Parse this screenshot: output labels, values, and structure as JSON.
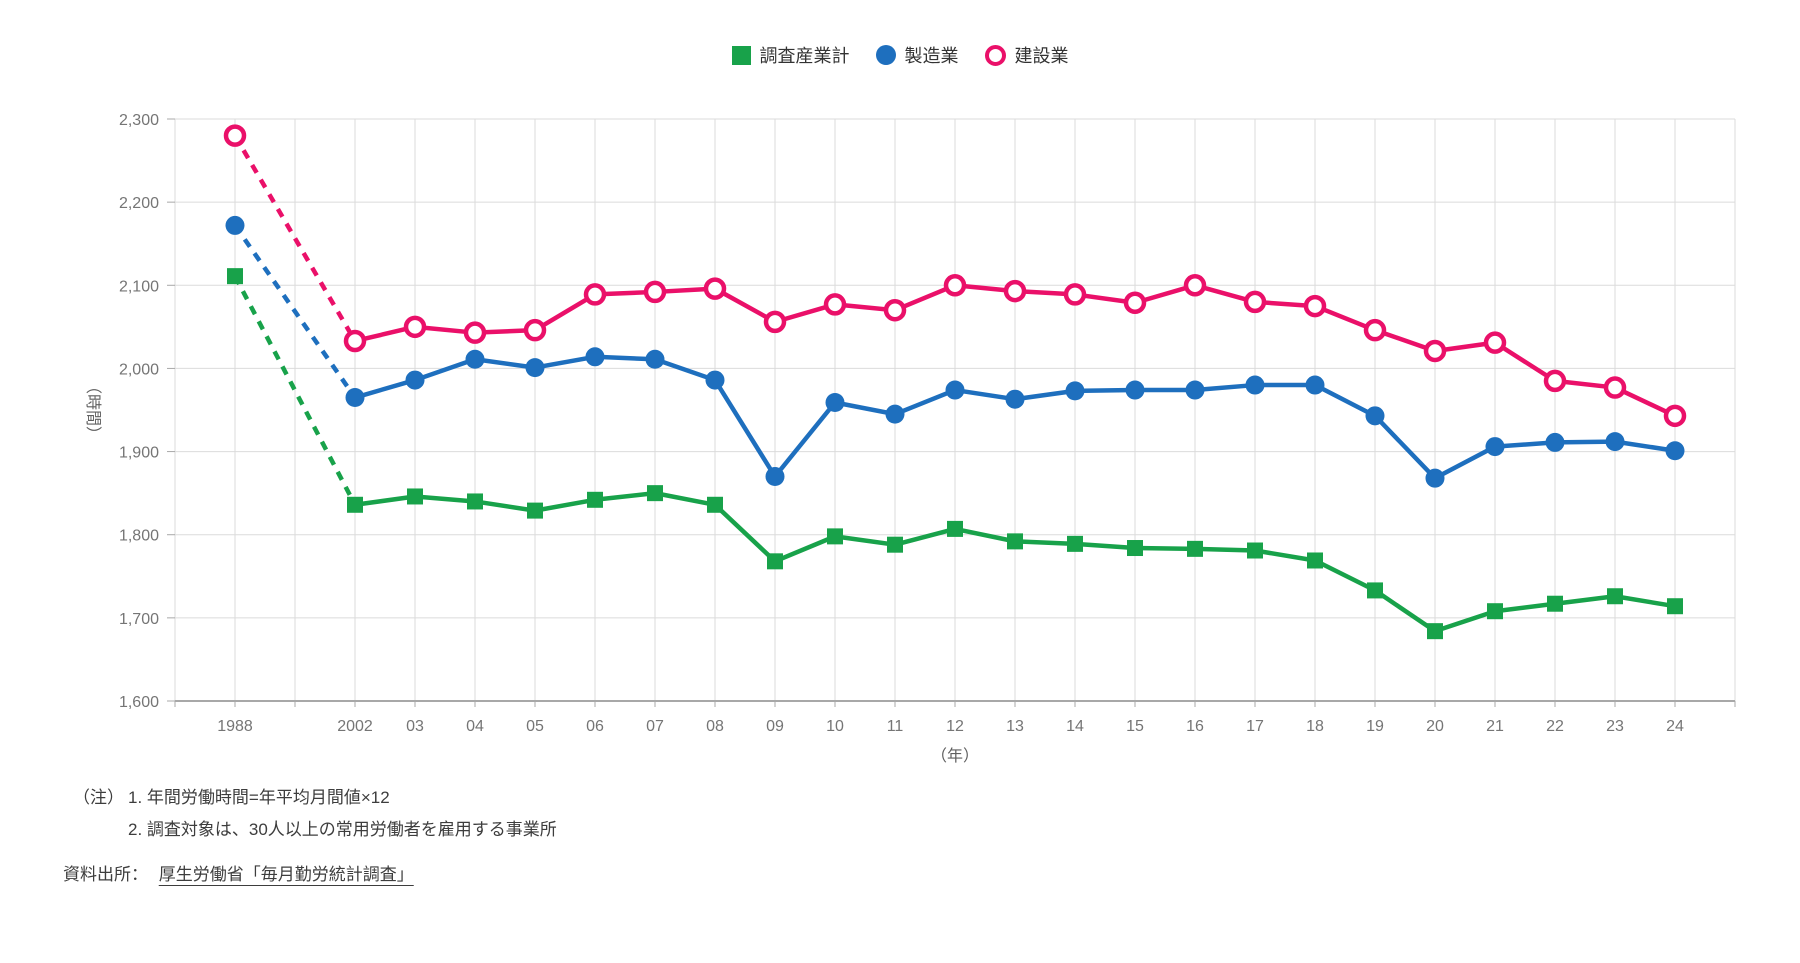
{
  "chart_data": {
    "type": "line",
    "title": "",
    "ylabel": "（時間）",
    "xlabel": "（年）",
    "ylim": [
      1600,
      2300
    ],
    "ytick_step": 100,
    "ytick_labels": [
      "1,600",
      "1,700",
      "1,800",
      "1,900",
      "2,000",
      "2,100",
      "2,200",
      "2,300"
    ],
    "grid": true,
    "legend_position": "top-center",
    "line_break": "dashed connector between 1988 and 2002",
    "categories": [
      "1988",
      "2002",
      "03",
      "04",
      "05",
      "06",
      "07",
      "08",
      "09",
      "10",
      "11",
      "12",
      "13",
      "14",
      "15",
      "16",
      "17",
      "18",
      "19",
      "20",
      "21",
      "22",
      "23",
      "24"
    ],
    "series": [
      {
        "name": "調査産業計",
        "marker": "square",
        "color": "#18A24A",
        "values": [
          2111,
          1836,
          1846,
          1840,
          1829,
          1842,
          1850,
          1836,
          1768,
          1798,
          1788,
          1807,
          1792,
          1789,
          1784,
          1783,
          1781,
          1769,
          1733,
          1684,
          1708,
          1717,
          1726,
          1714
        ]
      },
      {
        "name": "製造業",
        "marker": "circle",
        "color": "#1E6FBE",
        "values": [
          2172,
          1965,
          1986,
          2011,
          2001,
          2014,
          2011,
          1986,
          1870,
          1959,
          1945,
          1974,
          1963,
          1973,
          1974,
          1974,
          1980,
          1980,
          1943,
          1868,
          1906,
          1911,
          1912,
          1901
        ]
      },
      {
        "name": "建設業",
        "marker": "open-circle",
        "color": "#EA1069",
        "values": [
          2280,
          2033,
          2050,
          2043,
          2046,
          2089,
          2092,
          2096,
          2056,
          2077,
          2070,
          2100,
          2093,
          2089,
          2079,
          2100,
          2080,
          2075,
          2046,
          2021,
          2031,
          1985,
          1977,
          1943
        ]
      }
    ],
    "style_colors": {
      "grid": "#DBDBDB",
      "axis_line": "#A8A8A8",
      "tick_text": "#757575"
    }
  },
  "notes": {
    "label": "（注）",
    "line1": "1. 年間労働時間=年平均月間値×12",
    "line2": "2. 調査対象は、30人以上の常用労働者を雇用する事業所"
  },
  "source": {
    "label": "資料出所：",
    "link": "厚生労働省「毎月勤労統計調査」"
  }
}
